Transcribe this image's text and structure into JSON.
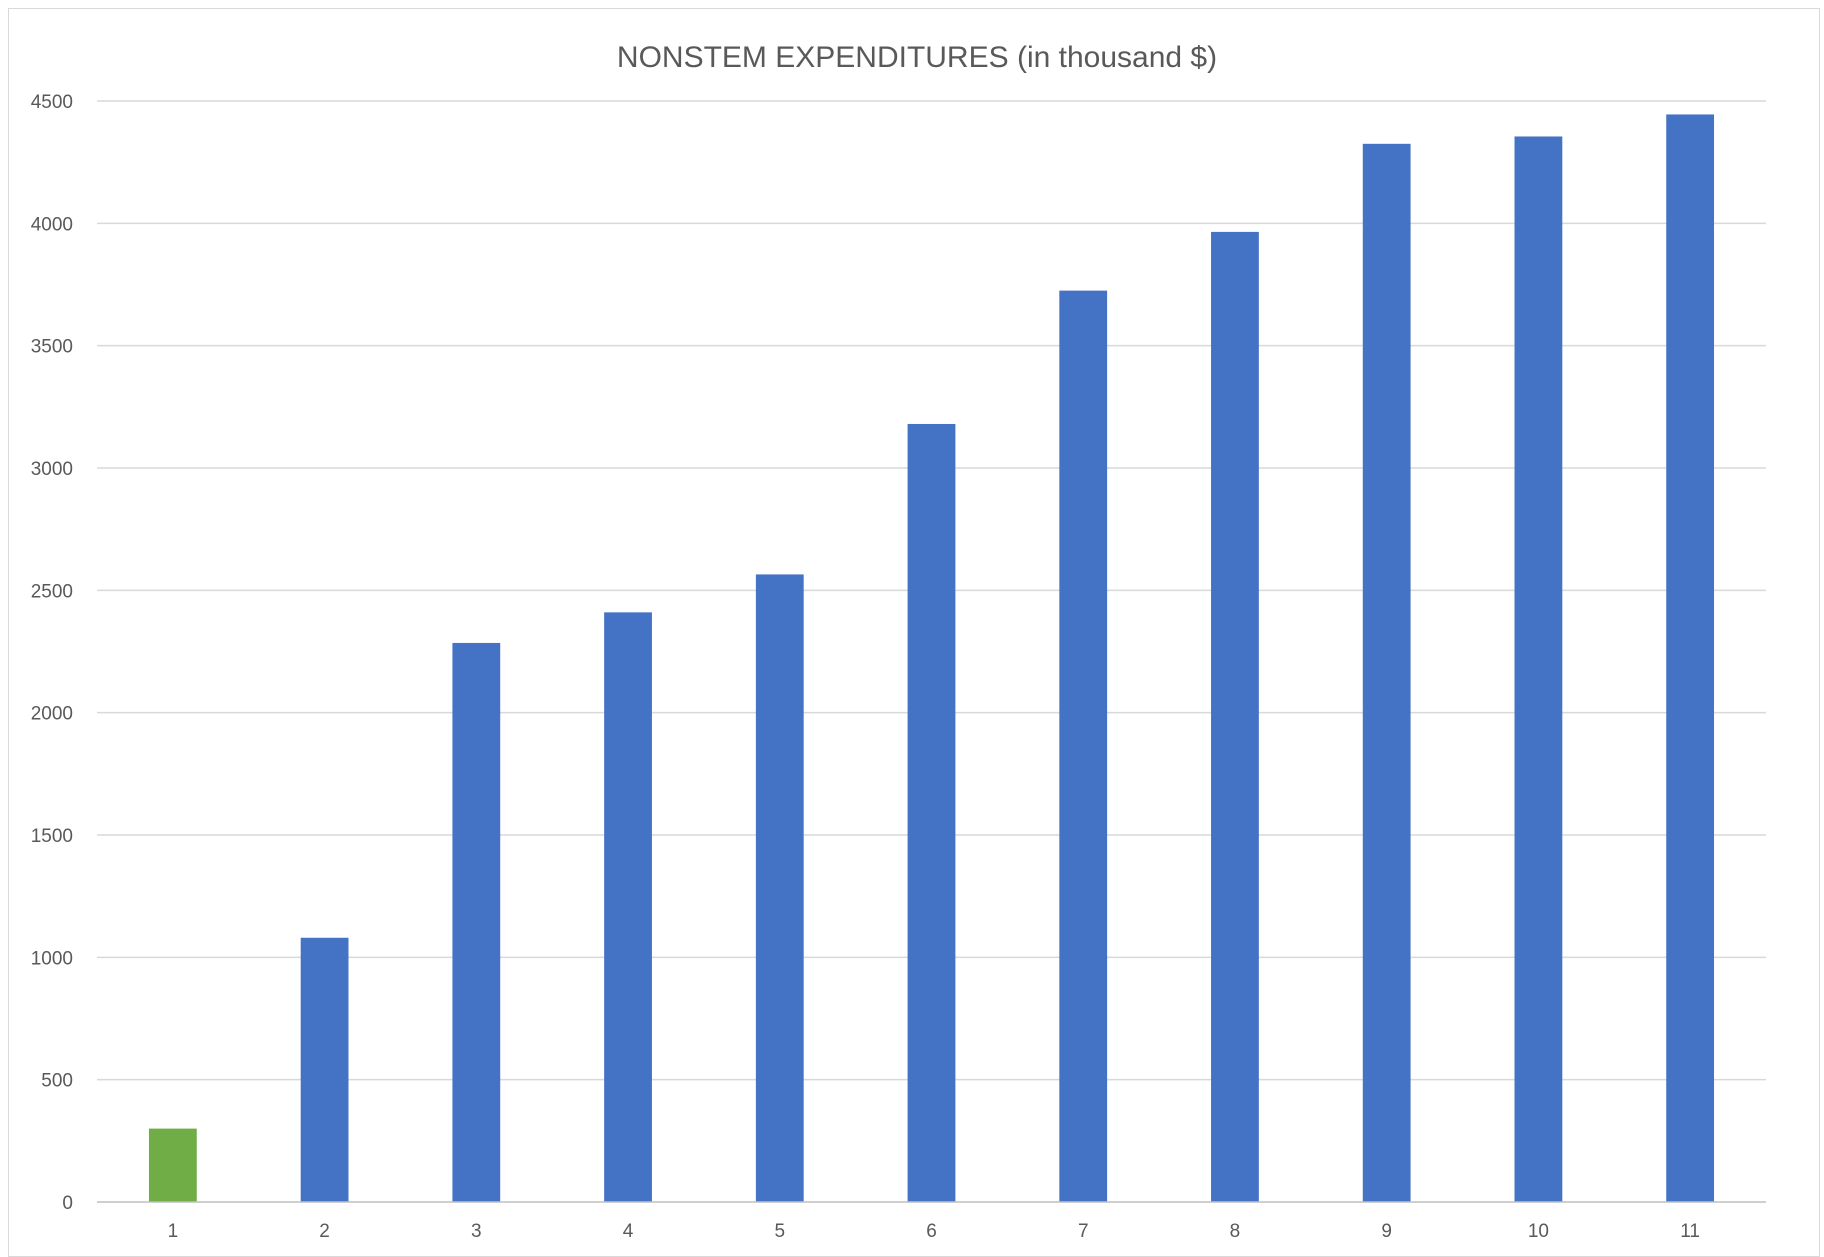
{
  "chart_data": {
    "type": "bar",
    "title": "NONSTEM EXPENDITURES (in thousand $)",
    "xlabel": "",
    "ylabel": "",
    "categories": [
      "1",
      "2",
      "3",
      "4",
      "5",
      "6",
      "7",
      "8",
      "9",
      "10",
      "11"
    ],
    "values": [
      300,
      1080,
      2285,
      2410,
      2565,
      3180,
      3725,
      3965,
      4325,
      4355,
      4445
    ],
    "ylim": [
      0,
      4500
    ],
    "yticks": [
      0,
      500,
      1000,
      1500,
      2000,
      2500,
      3000,
      3500,
      4000,
      4500
    ],
    "grid": true,
    "legend": "none",
    "colors": {
      "default_bar": "#4472C4",
      "highlight_bar": "#70AD47",
      "highlight_index": 0,
      "gridline": "#d9d9d9",
      "axis_line": "#bfbfbf"
    }
  }
}
